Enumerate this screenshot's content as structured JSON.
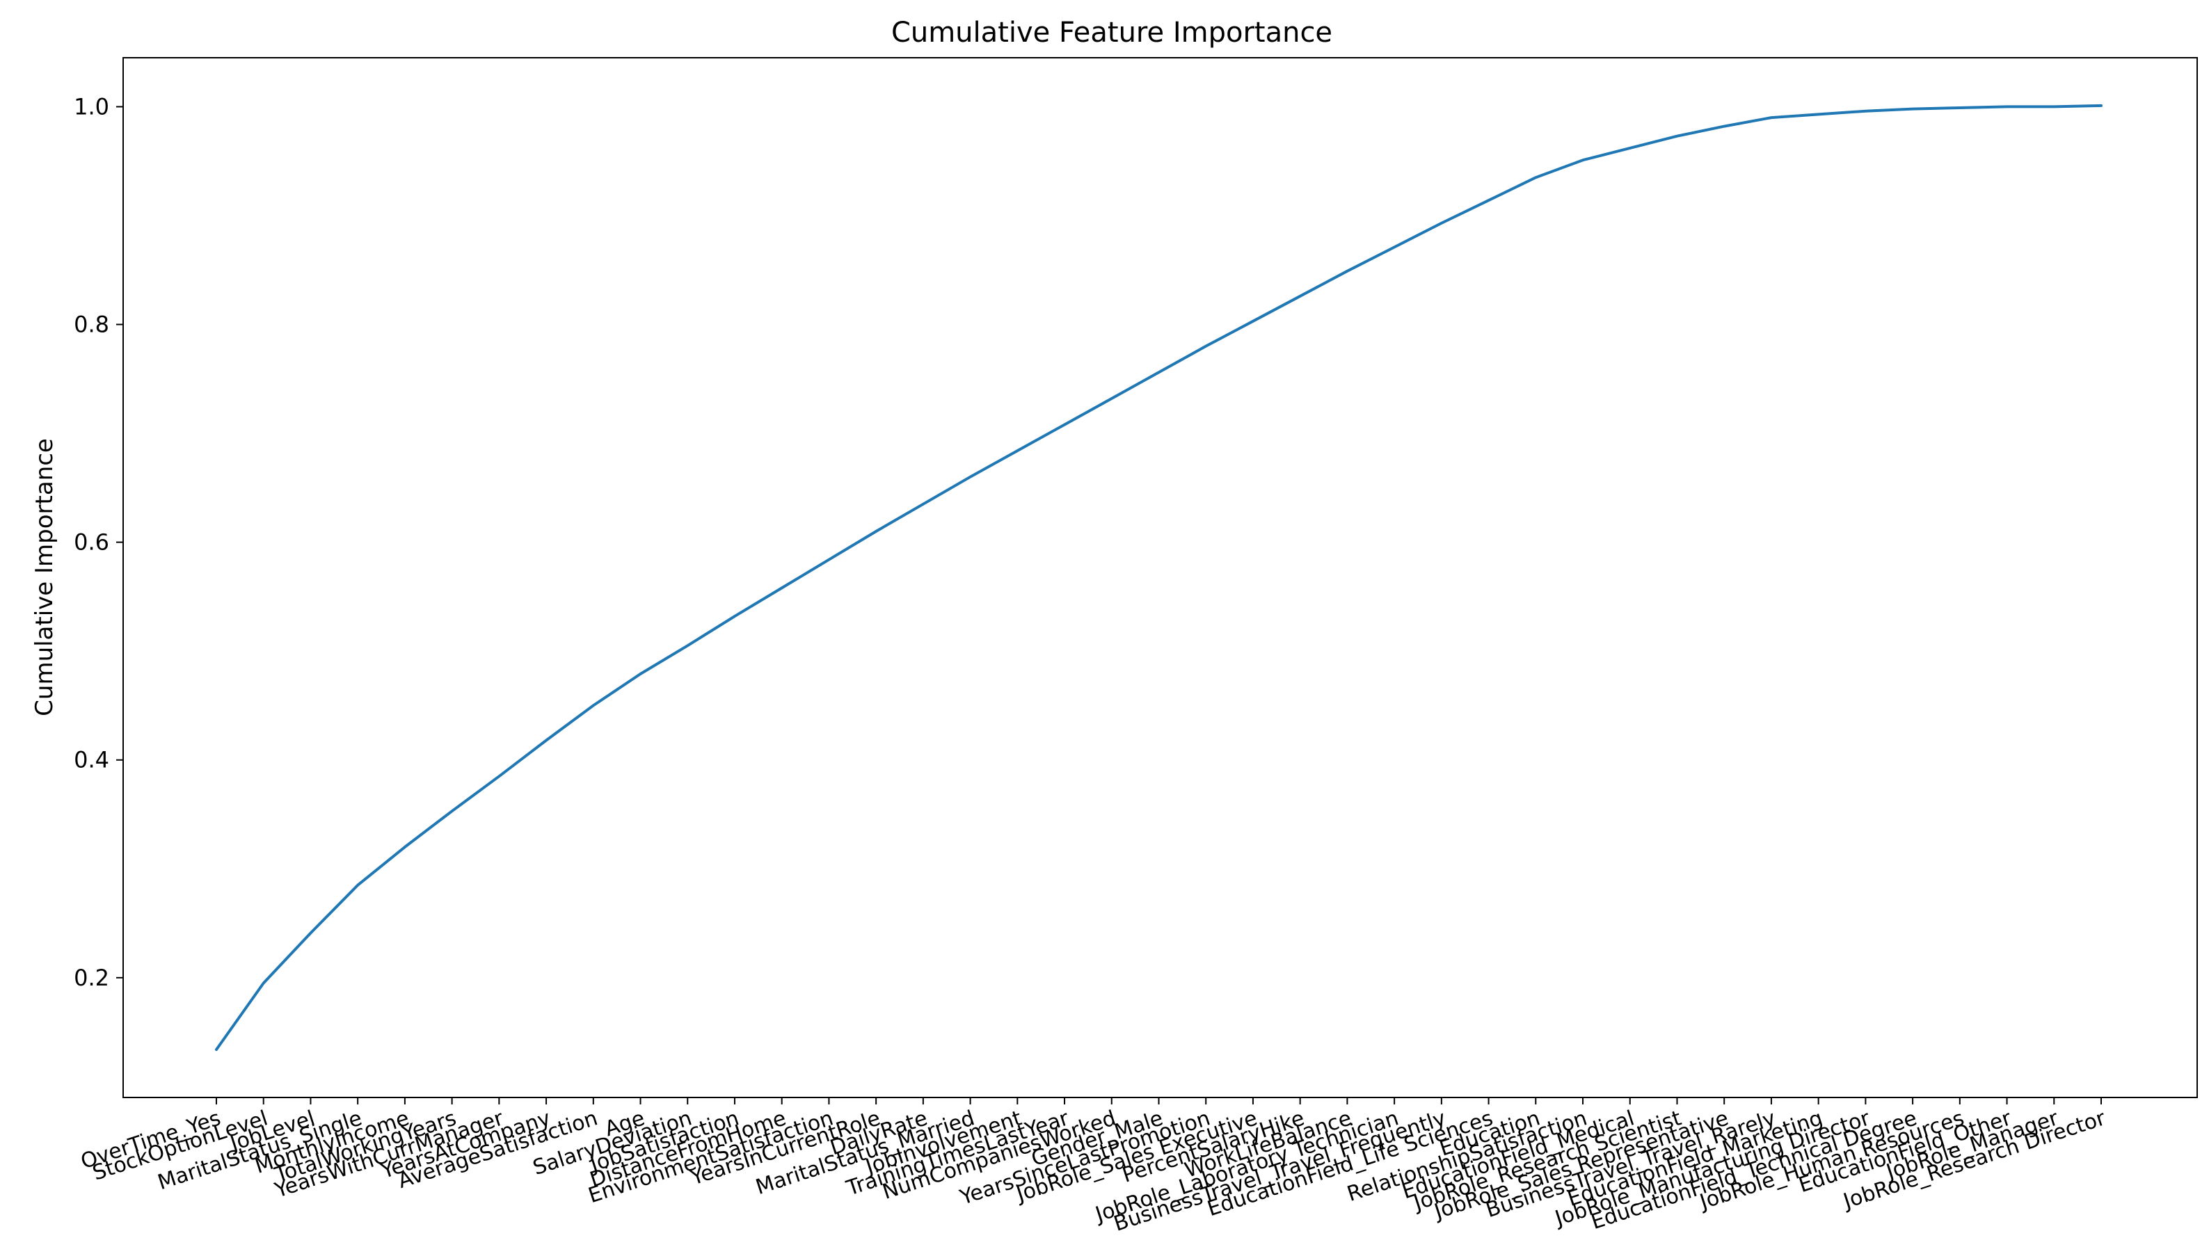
{
  "chart_data": {
    "type": "line",
    "title": "Cumulative Feature Importance",
    "xlabel": "",
    "ylabel": "Cumulative Importance",
    "ylim": [
      0.09,
      1.045
    ],
    "yticks": [
      0.2,
      0.4,
      0.6,
      0.8,
      1.0
    ],
    "ytick_labels": [
      "0.2",
      "0.4",
      "0.6",
      "0.8",
      "1.0"
    ],
    "grid": false,
    "line_color": "#1f77b4",
    "categories": [
      "OverTime_Yes",
      "StockOptionLevel",
      "JobLevel",
      "MaritalStatus_Single",
      "MonthlyIncome",
      "TotalWorkingYears",
      "YearsWithCurrManager",
      "YearsAtCompany",
      "AverageSatisfaction",
      "Age",
      "SalaryDeviation",
      "JobSatisfaction",
      "DistanceFromHome",
      "EnvironmentSatisfaction",
      "YearsInCurrentRole",
      "DailyRate",
      "MaritalStatus_Married",
      "JobInvolvement",
      "TrainingTimesLastYear",
      "NumCompaniesWorked",
      "Gender_Male",
      "YearsSinceLastPromotion",
      "JobRole_Sales Executive",
      "PercentSalaryHike",
      "WorkLifeBalance",
      "JobRole_Laboratory Technician",
      "BusinessTravel_Travel_Frequently",
      "EducationField_Life Sciences",
      "Education",
      "RelationshipSatisfaction",
      "EducationField_Medical",
      "JobRole_Research Scientist",
      "JobRole_Sales Representative",
      "BusinessTravel_Travel_Rarely",
      "EducationField_Marketing",
      "JobRole_Manufacturing Director",
      "EducationField_Technical Degree",
      "JobRole_Human Resources",
      "EducationField_Other",
      "JobRole_Manager",
      "JobRole_Research Director"
    ],
    "values": [
      0.134,
      0.195,
      0.241,
      0.285,
      0.32,
      0.353,
      0.385,
      0.418,
      0.45,
      0.479,
      0.505,
      0.532,
      0.558,
      0.584,
      0.61,
      0.635,
      0.66,
      0.684,
      0.708,
      0.732,
      0.756,
      0.78,
      0.803,
      0.826,
      0.849,
      0.871,
      0.893,
      0.914,
      0.935,
      0.951,
      0.962,
      0.973,
      0.982,
      0.99,
      0.993,
      0.996,
      0.998,
      0.999,
      1.0,
      1.0,
      1.001
    ]
  }
}
